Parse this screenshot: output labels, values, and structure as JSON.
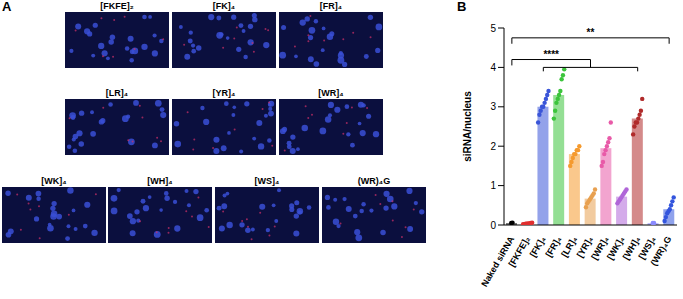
{
  "panel_a": {
    "title": "A",
    "images": [
      "[FKFE]₂",
      "[FK]₄",
      "[FR]₄",
      "[LR]₄",
      "[YR]₄",
      "[WR]₄",
      "[WK]₄",
      "[WH]₄",
      "[WS]₄",
      "(WR)₄G"
    ]
  },
  "chart_data": {
    "type": "bar",
    "title": "B",
    "y_label": "siRNA/nucleus",
    "categories": [
      "Naked siRNA",
      "[FKFE]₂",
      "[FK]₄",
      "[FR]₄",
      "[LR]₄",
      "[YR]₄",
      "[WR]₄",
      "[WK]₄",
      "[WH]₄",
      "[WS]₄",
      "(WR)₄G"
    ],
    "values": [
      0.05,
      0.03,
      3.0,
      3.3,
      1.8,
      0.67,
      1.95,
      0.72,
      2.7,
      0.05,
      0.4
    ],
    "points": [
      [
        0.05,
        0.06
      ],
      [
        0.02,
        0.02,
        0.03,
        0.03,
        0.04,
        0.04,
        0.05,
        0.06
      ],
      [
        2.6,
        2.8,
        2.9,
        3.0,
        3.0,
        3.1,
        3.2,
        3.3,
        3.4
      ],
      [
        2.7,
        2.9,
        3.1,
        3.2,
        3.3,
        3.4,
        3.7,
        3.8,
        3.95
      ],
      [
        1.5,
        1.6,
        1.7,
        1.8,
        1.8,
        1.9,
        1.9,
        2.0
      ],
      [
        0.45,
        0.55,
        0.6,
        0.65,
        0.7,
        0.75,
        0.8,
        0.9
      ],
      [
        1.5,
        1.6,
        1.8,
        1.9,
        2.0,
        2.1,
        2.2,
        2.6
      ],
      [
        0.55,
        0.6,
        0.65,
        0.7,
        0.75,
        0.8,
        0.85,
        0.9
      ],
      [
        2.3,
        2.5,
        2.6,
        2.6,
        2.7,
        2.8,
        2.9,
        3.2
      ],
      [
        0.05,
        0.05
      ],
      [
        0.1,
        0.2,
        0.3,
        0.35,
        0.4,
        0.5,
        0.6,
        0.7
      ]
    ],
    "colors": [
      "#000000",
      "#e03030",
      "#3a55d8",
      "#3cc43c",
      "#f59a2e",
      "#e8a050",
      "#e85aa8",
      "#b066d8",
      "#b02a2a",
      "#8a8aff",
      "#3355dd"
    ],
    "ylim": [
      0,
      5
    ],
    "yticks": [
      0,
      1,
      2,
      3,
      4,
      5
    ],
    "annotations": [
      "****",
      "**"
    ]
  }
}
